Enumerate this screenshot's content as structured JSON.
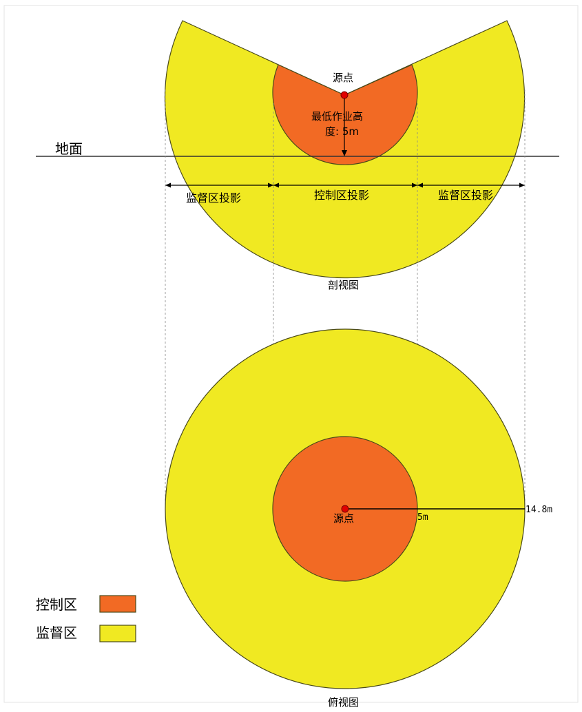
{
  "colors": {
    "control_zone": "#f26a24",
    "supervision_zone": "#f0e922",
    "source_point": "#e00000",
    "outline": "#4a4a1a"
  },
  "section_view": {
    "source_label": "源点",
    "height_label_line1": "最低作业高",
    "height_label_line2": "度: 5m",
    "ground_label": "地面",
    "left_projection_label": "监督区投影",
    "center_projection_label": "控制区投影",
    "right_projection_label": "监督区投影",
    "caption": "剖视图"
  },
  "top_view": {
    "source_label": "源点",
    "control_radius_label": "5m",
    "supervision_radius_label": "14.8m",
    "caption": "俯视图"
  },
  "legend": {
    "items": [
      {
        "label": "控制区",
        "color": "#f26a24"
      },
      {
        "label": "监督区",
        "color": "#f0e922"
      }
    ]
  }
}
